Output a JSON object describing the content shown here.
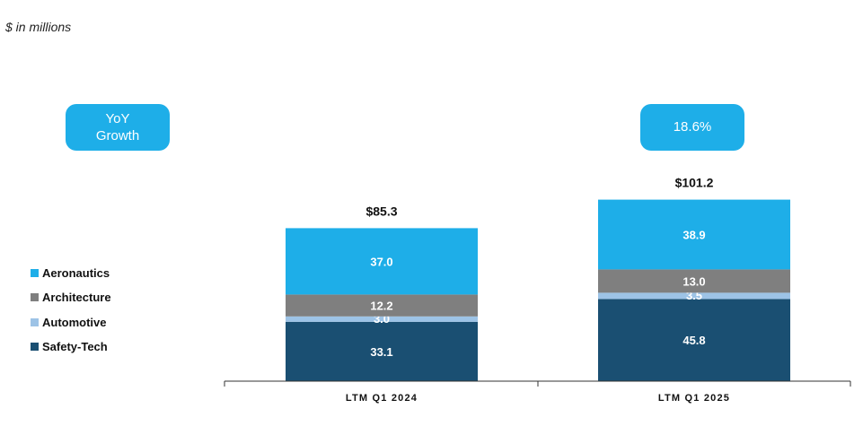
{
  "units_note": "$ in millions",
  "growth_badge": {
    "label": "YoY\nGrowth",
    "value": "18.6%"
  },
  "colors": {
    "Aeronautics": "#1eaee8",
    "Architecture": "#7f7f7f",
    "Automotive": "#9dc3e6",
    "Safety-Tech": "#1a4f72",
    "badge": "#1eaee8"
  },
  "legend": [
    "Aeronautics",
    "Architecture",
    "Automotive",
    "Safety-Tech"
  ],
  "chart_data": {
    "type": "bar",
    "stacked": true,
    "categories": [
      "LTM Q1 2024",
      "LTM Q1 2025"
    ],
    "series": [
      {
        "name": "Safety-Tech",
        "values": [
          33.1,
          45.8
        ],
        "labels": [
          "33.1",
          "45.8"
        ]
      },
      {
        "name": "Automotive",
        "values": [
          3.0,
          3.5
        ],
        "labels": [
          "3.0",
          "3.5"
        ]
      },
      {
        "name": "Architecture",
        "values": [
          12.2,
          13.0
        ],
        "labels": [
          "12.2",
          "13.0"
        ]
      },
      {
        "name": "Aeronautics",
        "values": [
          37.0,
          38.9
        ],
        "labels": [
          "37.0",
          "38.9"
        ]
      }
    ],
    "totals": [
      "$85.3",
      "$101.2"
    ],
    "total_values": [
      85.3,
      101.2
    ],
    "title": "",
    "xlabel": "",
    "ylabel": "",
    "grid": false,
    "legend_position": "left"
  }
}
